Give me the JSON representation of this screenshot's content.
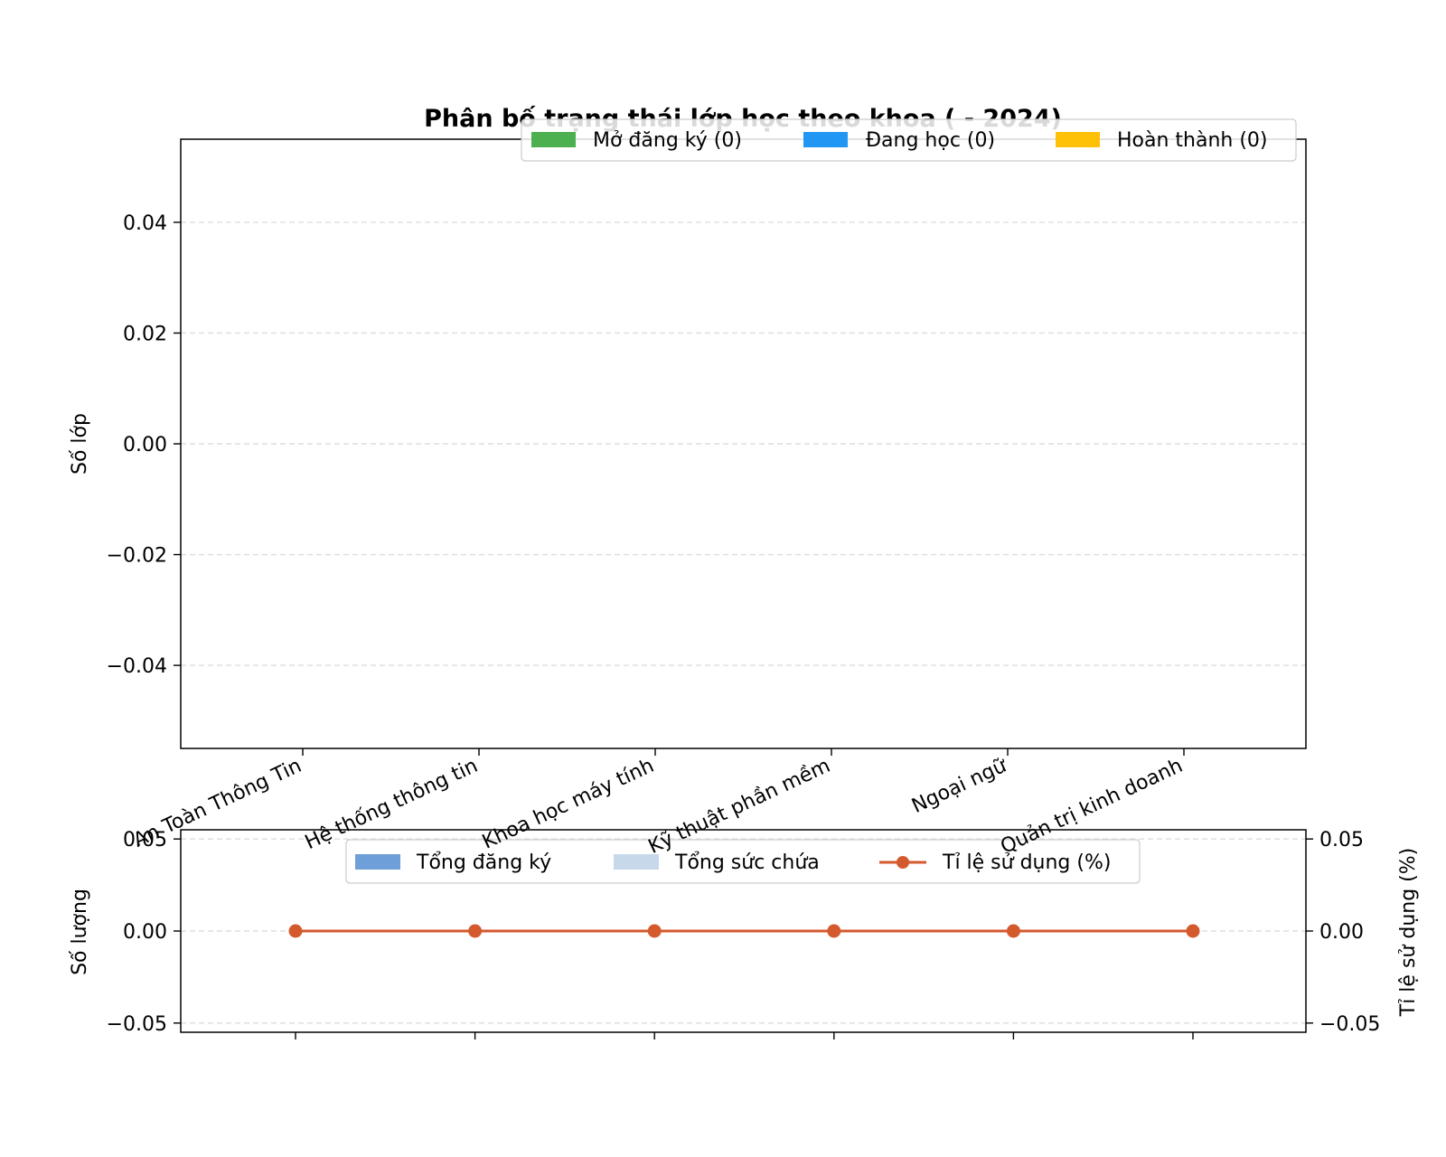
{
  "colors": {
    "open": "#4caf50",
    "studying": "#2196f3",
    "completed": "#ffc107",
    "total_registered": "#6f9fd8",
    "total_capacity": "#c6d8ea",
    "usage_rate": "#d45a2e",
    "grid": "#dddddd"
  },
  "chart_data": [
    {
      "type": "bar",
      "title": "Phân bố trạng thái lớp học theo khoa ( - 2024)",
      "ylabel": "Số lớp",
      "ylim": [
        -0.055,
        0.055
      ],
      "yticks": [
        "0.04",
        "0.02",
        "0.00",
        "−0.02",
        "−0.04"
      ],
      "ytick_values": [
        0.04,
        0.02,
        0.0,
        -0.02,
        -0.04
      ],
      "categories": [
        "An Toàn Thông Tin",
        "Hệ thống thông tin",
        "Khoa học máy tính",
        "Kỹ thuật phần mềm",
        "Ngoại ngữ",
        "Quản trị kinh doanh"
      ],
      "series": [
        {
          "name": "Mở đăng ký (0)",
          "values": [
            0,
            0,
            0,
            0,
            0,
            0
          ]
        },
        {
          "name": "Đang học (0)",
          "values": [
            0,
            0,
            0,
            0,
            0,
            0
          ]
        },
        {
          "name": "Hoàn thành (0)",
          "values": [
            0,
            0,
            0,
            0,
            0,
            0
          ]
        }
      ],
      "grid": true,
      "legend_position": "top-right"
    },
    {
      "type": "bar",
      "ylabel": "Số lượng",
      "y2label": "Tỉ lệ sử dụng (%)",
      "ylim": [
        -0.055,
        0.055
      ],
      "yticks": [
        "0.05",
        "0.00",
        "−0.05"
      ],
      "ytick_values": [
        0.05,
        0.0,
        -0.05
      ],
      "y2ticks": [
        "0.05",
        "0.00",
        "−0.05"
      ],
      "categories": [
        "An Toàn Thông Tin",
        "Hệ thống thông tin",
        "Khoa học máy tính",
        "Kỹ thuật phần mềm",
        "Ngoại ngữ",
        "Quản trị kinh doanh"
      ],
      "series": [
        {
          "name": "Tổng đăng ký",
          "type": "bar",
          "values": [
            0,
            0,
            0,
            0,
            0,
            0
          ]
        },
        {
          "name": "Tổng sức chứa",
          "type": "bar",
          "values": [
            0,
            0,
            0,
            0,
            0,
            0
          ]
        },
        {
          "name": "Tỉ lệ sử dụng (%)",
          "type": "line",
          "values": [
            0,
            0,
            0,
            0,
            0,
            0
          ]
        }
      ],
      "grid": true,
      "legend_position": "top-center"
    }
  ]
}
